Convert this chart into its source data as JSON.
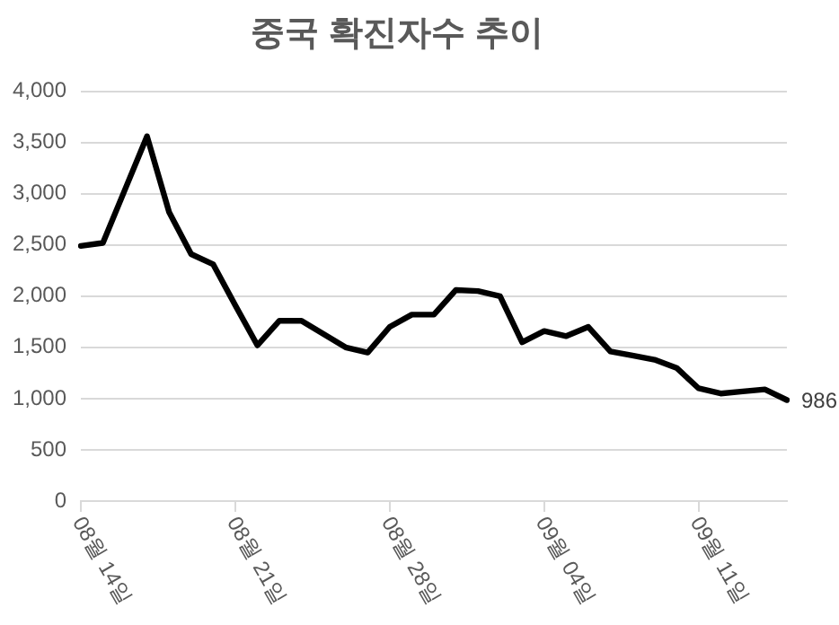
{
  "chart_data": {
    "type": "line",
    "title": "중국 확진자수 추이",
    "categories": [
      "08월 14일",
      null,
      null,
      null,
      null,
      null,
      null,
      "08월 21일",
      null,
      null,
      null,
      null,
      null,
      null,
      "08월 28일",
      null,
      null,
      null,
      null,
      null,
      null,
      "09월 04일",
      null,
      null,
      null,
      null,
      null,
      null,
      "09월 11일",
      null,
      null,
      null,
      null
    ],
    "series": [
      {
        "color": "#000000",
        "values": [
          2490,
          2520,
          3040,
          3560,
          2820,
          2410,
          2310,
          1910,
          1520,
          1760,
          1760,
          1630,
          1500,
          1450,
          1700,
          1820,
          1820,
          2060,
          2050,
          2000,
          1550,
          1660,
          1610,
          1700,
          1460,
          1420,
          1380,
          1300,
          1100,
          1050,
          1070,
          1090,
          986
        ],
        "value_labels": [
          null,
          null,
          null,
          null,
          null,
          null,
          null,
          null,
          null,
          null,
          null,
          null,
          null,
          null,
          null,
          null,
          null,
          null,
          null,
          null,
          null,
          null,
          null,
          null,
          null,
          null,
          null,
          null,
          null,
          null,
          null,
          null,
          "986"
        ]
      }
    ],
    "ylim": [
      0,
      4000
    ],
    "yticks": [
      0,
      500,
      {
        "value": 1000,
        "label": "1,000"
      },
      {
        "value": 1500,
        "label": "1,500"
      },
      {
        "value": 2000,
        "label": "2,000"
      },
      {
        "value": 2500,
        "label": "2,500"
      },
      {
        "value": 3000,
        "label": "3,000"
      },
      {
        "value": 3500,
        "label": "3,500"
      },
      {
        "value": 4000,
        "label": "4,000"
      }
    ],
    "grid": "y",
    "legend": false,
    "marker": "none",
    "line_style": "solid"
  }
}
